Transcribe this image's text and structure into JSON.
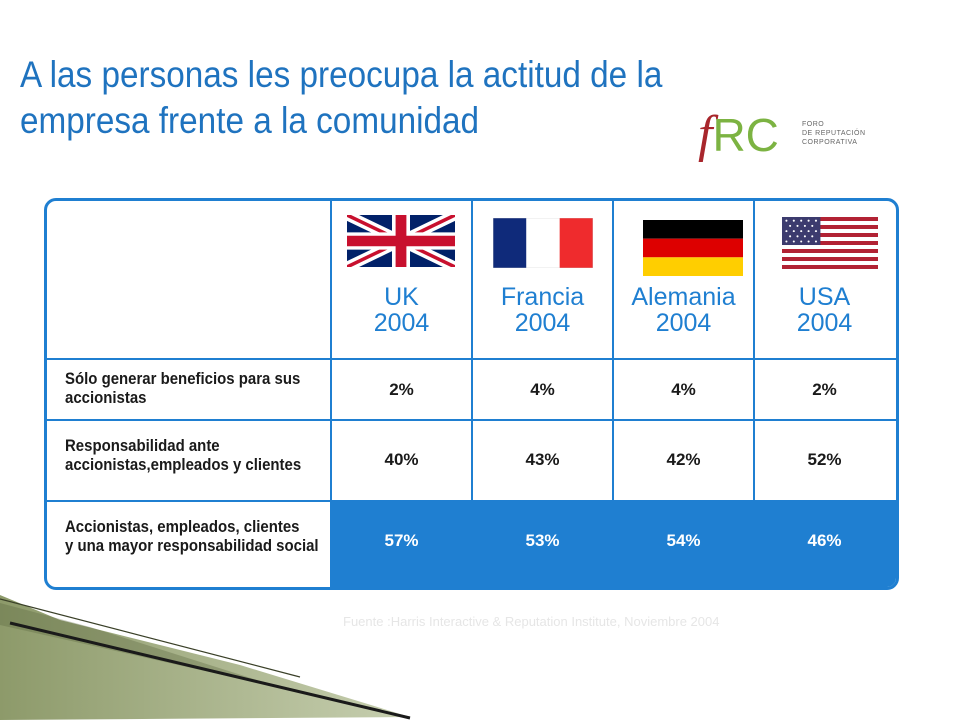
{
  "slide": {
    "title": "A las personas les preocupa la actitud de la empresa frente a la comunidad",
    "source": "Fuente :Harris Interactive & Reputation Institute, Noviembre 2004"
  },
  "logo": {
    "mark_f": "f",
    "mark_rc": "RC",
    "org_lines": [
      "FORO",
      "DE REPUTACIÓN",
      "CORPORATIVA"
    ]
  },
  "table": {
    "columns": [
      {
        "country": "UK",
        "year": "2004",
        "flag": "uk-flag"
      },
      {
        "country": "Francia",
        "year": "2004",
        "flag": "france-flag"
      },
      {
        "country": "Alemania",
        "year": "2004",
        "flag": "germany-flag"
      },
      {
        "country": "USA",
        "year": "2004",
        "flag": "usa-flag"
      }
    ],
    "rows": [
      {
        "label_lines": [
          "Sólo generar beneficios para sus",
          "accionistas"
        ],
        "values": [
          "2%",
          "4%",
          "4%",
          "2%"
        ]
      },
      {
        "label_lines": [
          "Responsabilidad ante",
          "accionistas,empleados y clientes"
        ],
        "values": [
          "40%",
          "43%",
          "42%",
          "52%"
        ]
      },
      {
        "label_lines": [
          "Accionistas, empleados, clientes",
          "y una mayor responsabilidad social"
        ],
        "values": [
          "57%",
          "53%",
          "54%",
          "46%"
        ],
        "highlighted": true
      }
    ]
  },
  "colors": {
    "accent": "#1f7fd1",
    "title": "#1f73bf",
    "logo_red": "#a8262c",
    "logo_green": "#7cb342"
  }
}
